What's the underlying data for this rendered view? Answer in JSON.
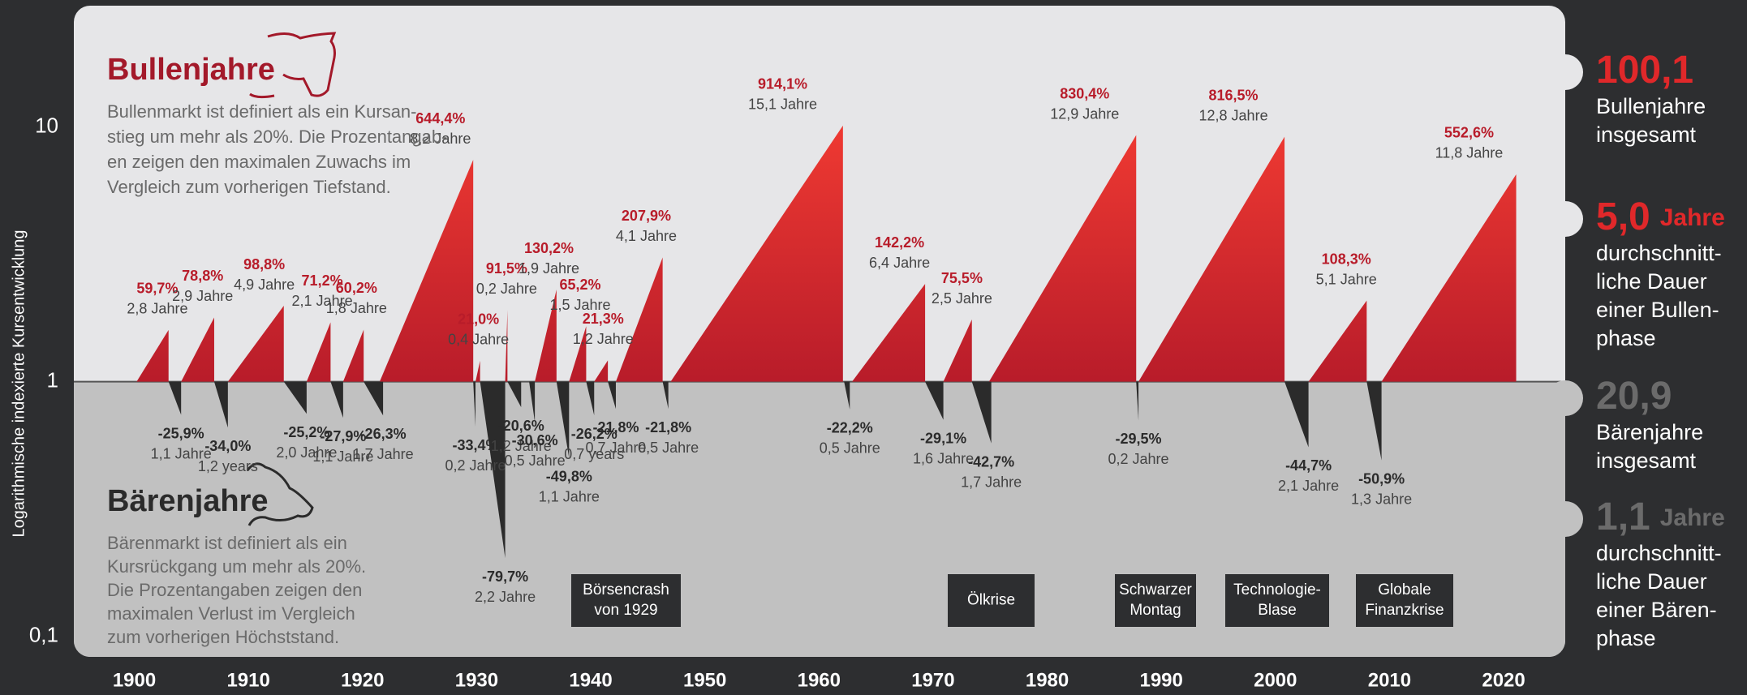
{
  "chart_data": {
    "type": "area",
    "y_title": "Logarithmische indexierte Kursentwicklung",
    "log_scale": true,
    "xlim": [
      1894.7,
      2025.4
    ],
    "ylim": [
      0.083,
      30
    ],
    "xticks": [
      1900,
      1910,
      1920,
      1930,
      1940,
      1950,
      1960,
      1970,
      1980,
      1990,
      2000,
      2010,
      2020
    ],
    "yticks": [
      10,
      1,
      {
        "value": 0.1,
        "label": "0,1"
      }
    ],
    "series": [
      {
        "name": "Bullenjahre",
        "color": "#b81c2a",
        "x": [
          1900.2,
          1904.1,
          1908.2,
          1915.1,
          1918.3,
          1921.5,
          1929.9,
          1932.5,
          1935.1,
          1938.1,
          1940.3,
          1942.2,
          1947.0,
          1962.9,
          1970.9,
          1974.9,
          1988.0,
          2002.9,
          2009.3
        ],
        "values": [
          59.7,
          78.8,
          98.8,
          71.2,
          60.2,
          644.4,
          21.0,
          91.5,
          130.2,
          65.2,
          21.3,
          207.9,
          914.1,
          142.2,
          75.5,
          830.4,
          816.5,
          108.3,
          552.6
        ],
        "value_labels": [
          "59,7%",
          "78,8%",
          "98,8%",
          "71,2%",
          "60,2%",
          "644,4%",
          "21,0%",
          "91,5%",
          "130,2%",
          "65,2%",
          "21,3%",
          "207,9%",
          "914,1%",
          "142,2%",
          "75,5%",
          "830,4%",
          "816,5%",
          "108,3%",
          "552,6%"
        ],
        "durations": [
          2.8,
          2.9,
          4.9,
          2.1,
          1.8,
          8.2,
          0.4,
          0.2,
          1.9,
          1.5,
          1.2,
          4.1,
          15.1,
          6.4,
          2.5,
          12.9,
          12.8,
          5.1,
          11.8
        ],
        "duration_labels": [
          "2,8 Jahre",
          "2,9 Jahre",
          "4,9 Jahre",
          "2,1 Jahre",
          "1,8 Jahre",
          "8,2 Jahre",
          "0,4 Jahre",
          "0,2 Jahre",
          "1,9 Jahre",
          "1,5 Jahre",
          "1,2 Jahre",
          "4,1 Jahre",
          "15,1 Jahre",
          "6,4 Jahre",
          "2,5 Jahre",
          "12,9 Jahre",
          "12,8 Jahre",
          "5,1 Jahre",
          "11,8 Jahre"
        ]
      },
      {
        "name": "Bärenjahre",
        "color": "#2b2b2b",
        "x": [
          1903.0,
          1907.0,
          1913.1,
          1917.2,
          1920.1,
          1929.7,
          1930.3,
          1932.7,
          1934.6,
          1937.0,
          1939.6,
          1941.5,
          1946.3,
          1962.2,
          1969.3,
          1973.4,
          1987.8,
          2000.8,
          2008.0
        ],
        "values": [
          -25.9,
          -34.0,
          -25.2,
          -27.9,
          -26.3,
          -33.4,
          -79.7,
          -20.6,
          -30.6,
          -49.8,
          -26.2,
          -21.8,
          -21.8,
          -22.2,
          -29.1,
          -42.7,
          -29.5,
          -44.7,
          -50.9
        ],
        "value_labels": [
          "-25,9%",
          "-34,0%",
          "-25,2%",
          "-27,9%",
          "-26,3%",
          "-33,4%",
          "-79,7%",
          "-20,6%",
          "-30,6%",
          "-49,8%",
          "-26,2%",
          "-21,8%",
          "-21,8%",
          "-22,2%",
          "-29,1%",
          "-42,7%",
          "-29,5%",
          "-44,7%",
          "-50,9%"
        ],
        "durations": [
          1.1,
          1.2,
          2.0,
          1.1,
          1.7,
          0.2,
          2.2,
          1.2,
          0.5,
          1.1,
          0.7,
          0.7,
          0.5,
          0.5,
          1.6,
          1.7,
          0.2,
          2.1,
          1.3
        ],
        "duration_labels": [
          "1,1 Jahre",
          "1,2 years",
          "2,0 Jahre",
          "1,1 Jahre",
          "1,7 Jahre",
          "0,2 Jahre",
          "2,2 Jahre",
          "1,2 Jahre",
          "0,5 Jahre",
          "1,1 Jahre",
          "0,7 years",
          "0,7 Jahre",
          "0,5 Jahre",
          "0,5 Jahre",
          "1,6 Jahre",
          "1,7 Jahre",
          "0,2 Jahre",
          "2,1 Jahre",
          "1,3 Jahre"
        ]
      }
    ]
  },
  "descriptions": {
    "bull": [
      "Bullenmarkt ist definiert als ein Kursan-",
      "stieg um mehr als 20%. Die Prozentangab-",
      "en zeigen den maximalen Zuwachs im",
      "Vergleich zum vorherigen Tiefstand."
    ],
    "bear": [
      "Bärenmarkt ist definiert als ein",
      "Kursrückgang um mehr als 20%.",
      "Die Prozentangaben zeigen den",
      "maximalen Verlust im Vergleich",
      "zum vorherigen Höchststand."
    ]
  },
  "events": [
    [
      "Börsencrash",
      "von 1929"
    ],
    [
      "Ölkrise"
    ],
    [
      "Schwarzer",
      "Montag"
    ],
    [
      "Technologie-",
      "Blase"
    ],
    [
      "Globale",
      "Finanzkrise"
    ]
  ],
  "stats": [
    {
      "value": "100,1",
      "caption": [
        "Bullenjahre",
        "insgesamt"
      ]
    },
    {
      "value": "5,0",
      "unit": "Jahre",
      "caption": [
        "durchschnitt-",
        "liche Dauer",
        "einer Bullen-",
        "phase"
      ]
    },
    {
      "value": "20,9",
      "caption": [
        "Bärenjahre",
        "insgesamt"
      ]
    },
    {
      "value": "1,1",
      "unit": "Jahre",
      "caption": [
        "durchschnitt-",
        "liche Dauer",
        "einer Bären-",
        "phase"
      ]
    }
  ]
}
